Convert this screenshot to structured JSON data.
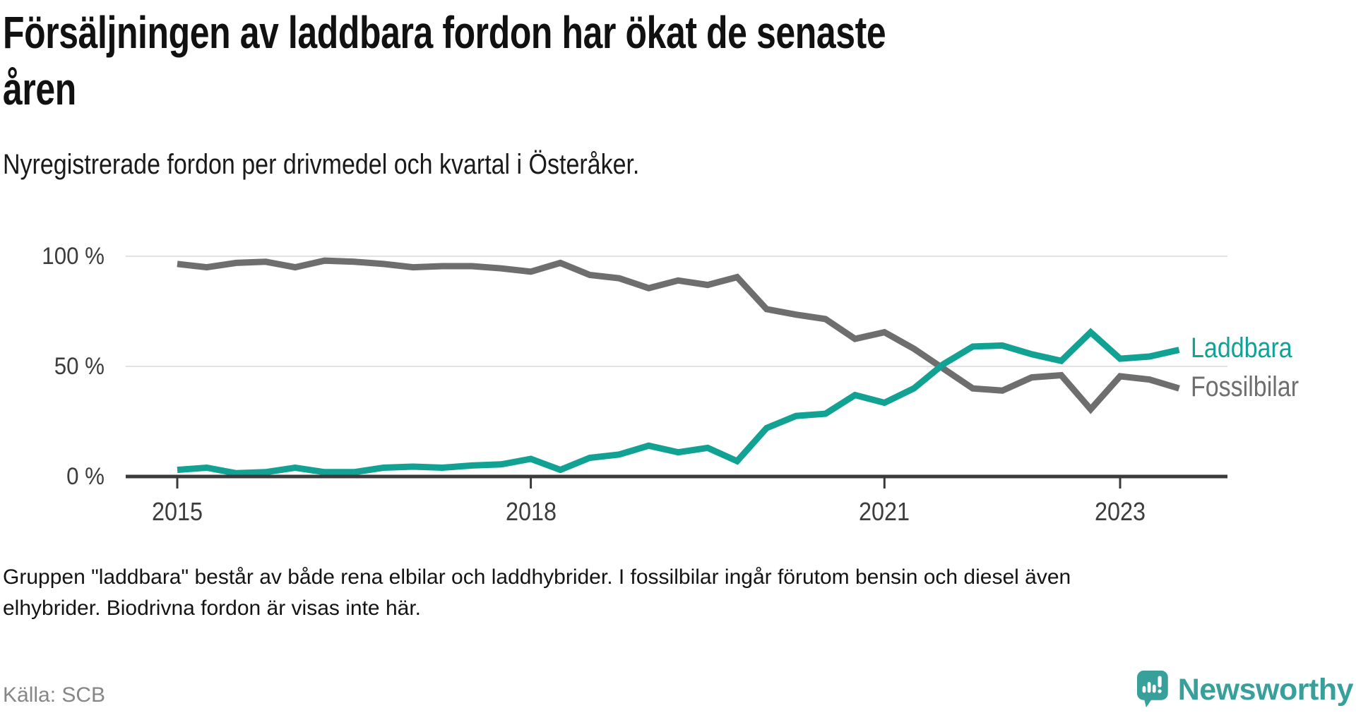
{
  "header": {
    "title_line1": "Försäljningen av laddbara fordon har ökat de senaste",
    "title_line2": "åren",
    "subtitle": "Nyregistrerade fordon per drivmedel och kvartal i Österåker."
  },
  "chart_data": {
    "type": "line",
    "unit": "%",
    "ylim": [
      0,
      100
    ],
    "grid": "horizontal-light",
    "legend_position": "right-end-of-lines",
    "x": [
      "2015 Q1",
      "2015 Q2",
      "2015 Q3",
      "2015 Q4",
      "2016 Q1",
      "2016 Q2",
      "2016 Q3",
      "2016 Q4",
      "2017 Q1",
      "2017 Q2",
      "2017 Q3",
      "2017 Q4",
      "2018 Q1",
      "2018 Q2",
      "2018 Q3",
      "2018 Q4",
      "2019 Q1",
      "2019 Q2",
      "2019 Q3",
      "2019 Q4",
      "2020 Q1",
      "2020 Q2",
      "2020 Q3",
      "2020 Q4",
      "2021 Q1",
      "2021 Q2",
      "2021 Q3",
      "2021 Q4",
      "2022 Q1",
      "2022 Q2",
      "2022 Q3",
      "2022 Q4",
      "2023 Q1",
      "2023 Q2",
      "2023 Q3"
    ],
    "series": [
      {
        "id": "fossilbilar",
        "name": "Fossilbilar",
        "color": "#6e6e6e",
        "values": [
          96.5,
          95,
          97,
          97.5,
          95,
          98,
          97.5,
          96.5,
          95,
          95.5,
          95.5,
          94.5,
          93,
          97,
          91.5,
          90,
          85.5,
          89,
          87,
          90.5,
          76,
          73.5,
          71.5,
          62.5,
          65.5,
          58,
          49,
          40,
          39,
          45,
          46,
          30.5,
          45.5,
          44,
          40
        ]
      },
      {
        "id": "laddbara",
        "name": "Laddbara",
        "color": "#12a294",
        "values": [
          3,
          4,
          1.5,
          2,
          4,
          2,
          2,
          4,
          4.5,
          4,
          5,
          5.5,
          8,
          3,
          8.5,
          10,
          14,
          11,
          13,
          7,
          22,
          27.5,
          28.5,
          37,
          33.5,
          40,
          51,
          59,
          59.5,
          55.5,
          52.5,
          65.5,
          53.5,
          54.5,
          57.5
        ]
      }
    ],
    "y_ticks": [
      {
        "label": "100 %",
        "value": 100
      },
      {
        "label": "50 %",
        "value": 50
      },
      {
        "label": "0 %",
        "value": 0
      }
    ],
    "x_ticks": [
      {
        "label": "2015",
        "index": 0
      },
      {
        "label": "2018",
        "index": 12
      },
      {
        "label": "2021",
        "index": 24
      },
      {
        "label": "2023",
        "index": 32
      }
    ]
  },
  "footer": {
    "note_line1": "Gruppen \"laddbara\" består av både rena elbilar och laddhybrider. I fossilbilar ingår förutom bensin och diesel även",
    "note_line2": "elhybrider. Biodrivna fordon är visas inte här.",
    "source": "Källa: SCB"
  },
  "branding": {
    "logo_text": "Newsworthy",
    "logo_color": "#38a09a"
  }
}
